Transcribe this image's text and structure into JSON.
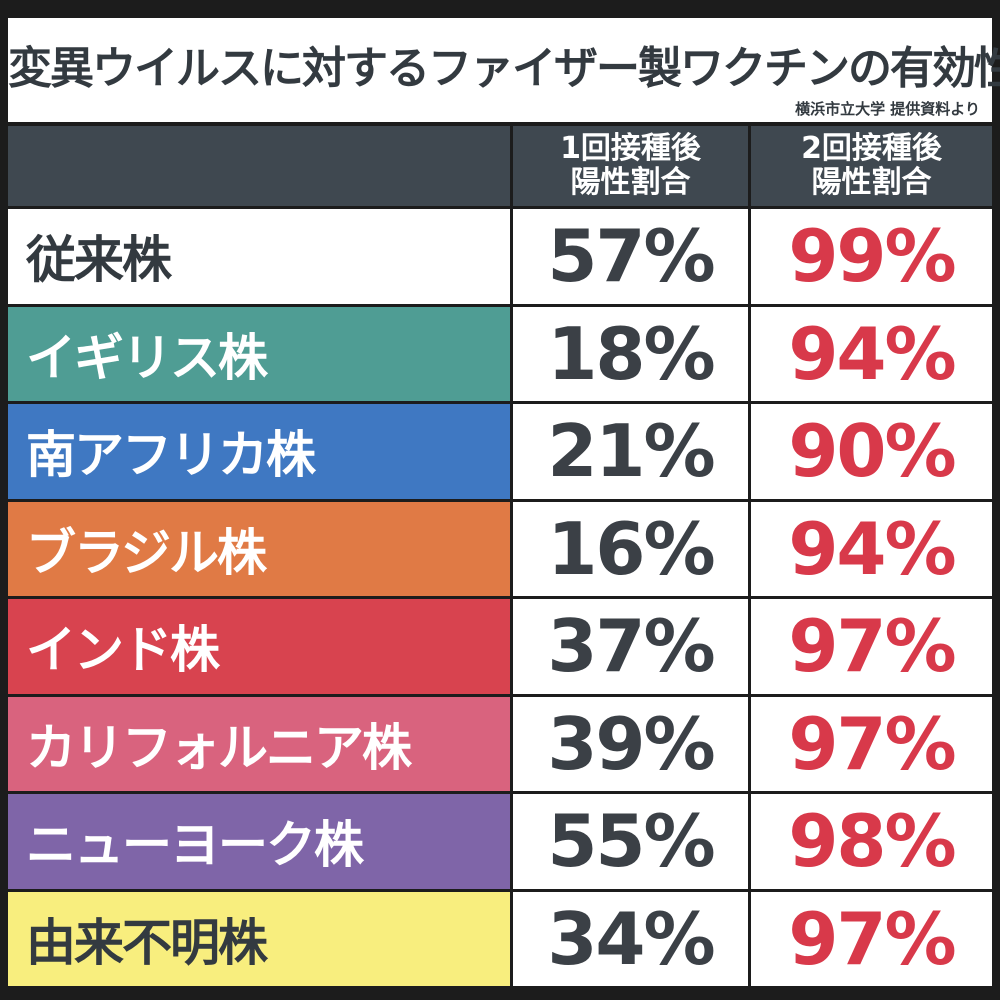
{
  "header": {
    "title": "変異ウイルスに対するファイザー製ワクチンの有効性",
    "source": "横浜市立大学 提供資料より"
  },
  "table": {
    "columns": [
      "1回接種後\n陽性割合",
      "2回接種後\n陽性割合"
    ],
    "rows": [
      [
        "従来株",
        "57%",
        "99%"
      ],
      [
        "イギリス株",
        "18%",
        "94%"
      ],
      [
        "南アフリカ株",
        "21%",
        "90%"
      ],
      [
        "ブラジル株",
        "16%",
        "94%"
      ],
      [
        "インド株",
        "37%",
        "97%"
      ],
      [
        "カリフォルニア株",
        "39%",
        "97%"
      ],
      [
        "ニューヨーク株",
        "55%",
        "98%"
      ],
      [
        "由来不明株",
        "34%",
        "97%"
      ]
    ]
  }
}
